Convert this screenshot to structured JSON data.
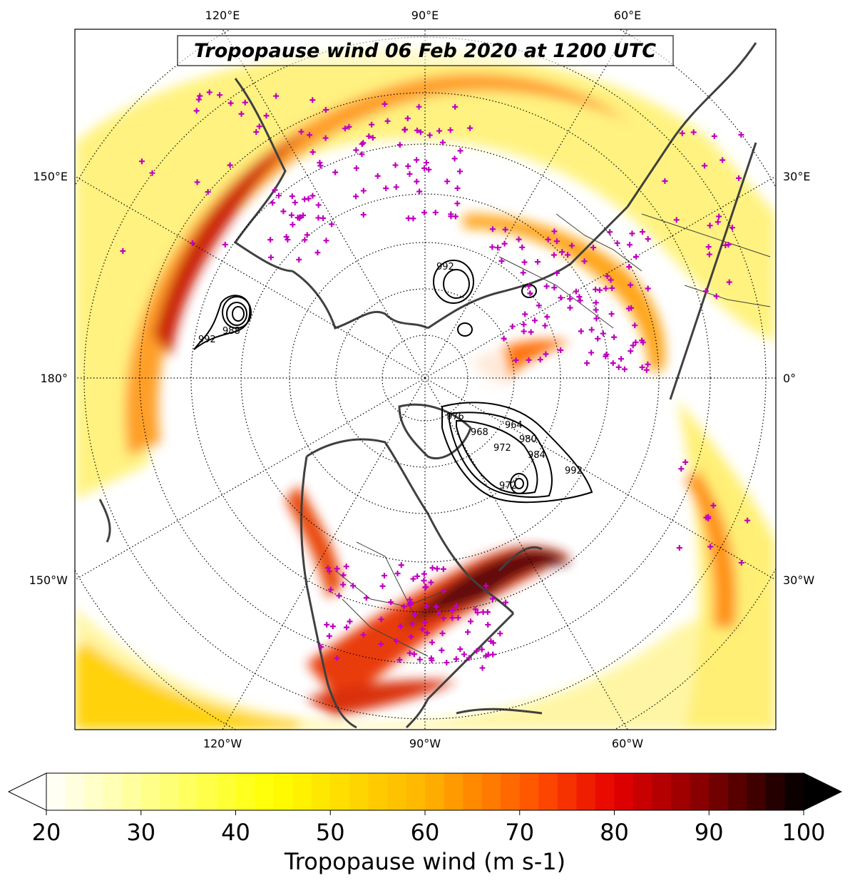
{
  "map": {
    "title": "Tropopause wind 06 Feb 2020 at 1200 UTC",
    "projection": "north-polar-stereographic",
    "field": "tropopause-wind-speed",
    "contour_field": "mean-sea-level-pressure",
    "station_marker_color": "#c000c0",
    "coastline_color": "#404040",
    "longitude_labels_top": [
      "120°E",
      "90°E",
      "60°E"
    ],
    "longitude_labels_bottom": [
      "120°W",
      "90°W",
      "60°W"
    ],
    "longitude_labels_left": [
      "150°E",
      "180°",
      "150°W"
    ],
    "longitude_labels_right": [
      "30°E",
      "0°",
      "30°W"
    ],
    "pressure_contour_labels": [
      "992",
      "988",
      "992",
      "976",
      "968",
      "972",
      "980",
      "984",
      "992",
      "964",
      "972"
    ]
  },
  "colorbar": {
    "title": "Tropopause wind (m s-1)",
    "ticks": [
      "20",
      "30",
      "40",
      "50",
      "60",
      "70",
      "80",
      "90",
      "100"
    ],
    "min": 20,
    "max": 100,
    "step": 2,
    "extend": "both",
    "colormap": "hot_r"
  }
}
